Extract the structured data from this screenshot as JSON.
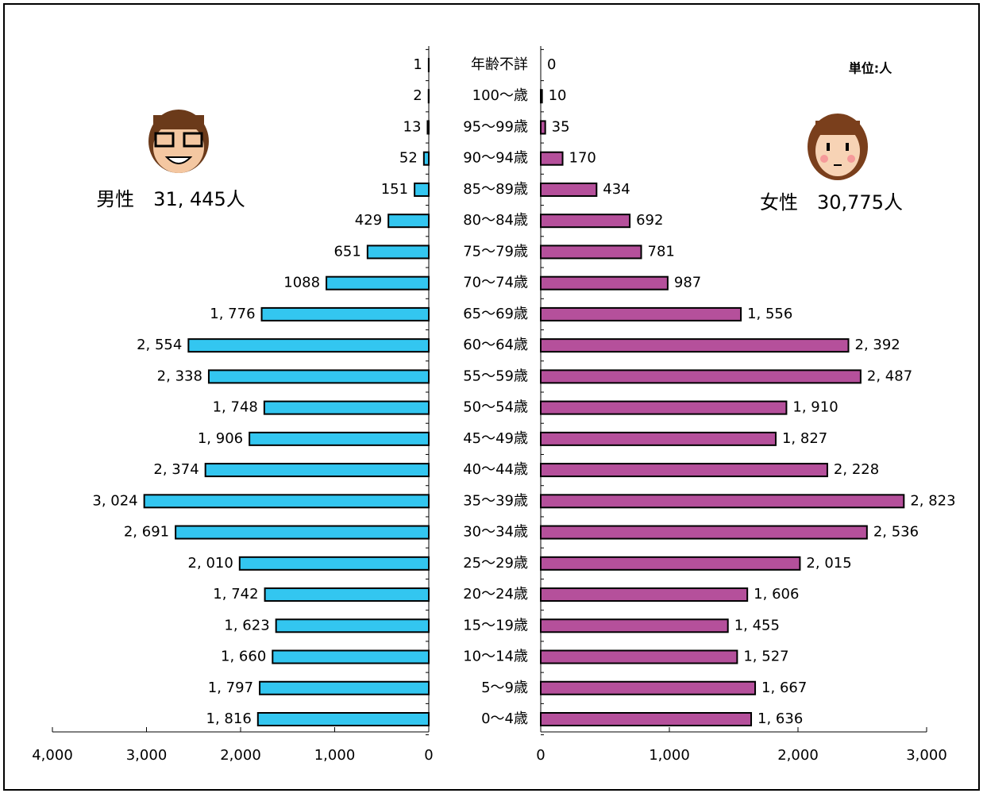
{
  "chart_data": {
    "type": "bar",
    "orientation": "horizontal",
    "unit_label": "単位:人",
    "categories": [
      "年齢不詳",
      "100～歳",
      "95～99歳",
      "90～94歳",
      "85～89歳",
      "80～84歳",
      "75～79歳",
      "70～74歳",
      "65～69歳",
      "60～64歳",
      "55～59歳",
      "50～54歳",
      "45～49歳",
      "40～44歳",
      "35～39歳",
      "30～34歳",
      "25～29歳",
      "20～24歳",
      "15～19歳",
      "10～14歳",
      "5～9歳",
      "0～4歳"
    ],
    "series": [
      {
        "name": "男性　31, 445人",
        "color": "#33c6f0",
        "side": "left",
        "values": [
          1,
          2,
          13,
          52,
          151,
          429,
          651,
          1088,
          1776,
          2554,
          2338,
          1748,
          1906,
          2374,
          3024,
          2691,
          2010,
          1742,
          1623,
          1660,
          1797,
          1816
        ],
        "value_labels": [
          "1",
          "2",
          "13",
          "52",
          "151",
          "429",
          "651",
          "1088",
          "1, 776",
          "2, 554",
          "2, 338",
          "1, 748",
          "1, 906",
          "2, 374",
          "3, 024",
          "2, 691",
          "2, 010",
          "1, 742",
          "1, 623",
          "1, 660",
          "1, 797",
          "1, 816"
        ],
        "xlim": [
          0,
          4000
        ],
        "xticks": [
          0,
          {
            "value": 1000,
            "label": "1,000"
          },
          {
            "value": 2000,
            "label": "2,000"
          },
          {
            "value": 3000,
            "label": "3,000"
          },
          {
            "value": 4000,
            "label": "4,000"
          }
        ]
      },
      {
        "name": "女性　30,775人",
        "color": "#b5509b",
        "side": "right",
        "values": [
          0,
          10,
          35,
          170,
          434,
          692,
          781,
          987,
          1556,
          2392,
          2487,
          1910,
          1827,
          2228,
          2823,
          2536,
          2015,
          1606,
          1455,
          1527,
          1667,
          1636
        ],
        "value_labels": [
          "0",
          "10",
          "35",
          "170",
          "434",
          "692",
          "781",
          "987",
          "1, 556",
          "2, 392",
          "2, 487",
          "1, 910",
          "1, 827",
          "2, 228",
          "2, 823",
          "2, 536",
          "2, 015",
          "1, 606",
          "1, 455",
          "1, 527",
          "1, 667",
          "1, 636"
        ],
        "xlim": [
          0,
          3000
        ],
        "xticks": [
          0,
          {
            "value": 1000,
            "label": "1,000"
          },
          {
            "value": 2000,
            "label": "2,000"
          },
          {
            "value": 3000,
            "label": "3,000"
          }
        ]
      }
    ]
  }
}
